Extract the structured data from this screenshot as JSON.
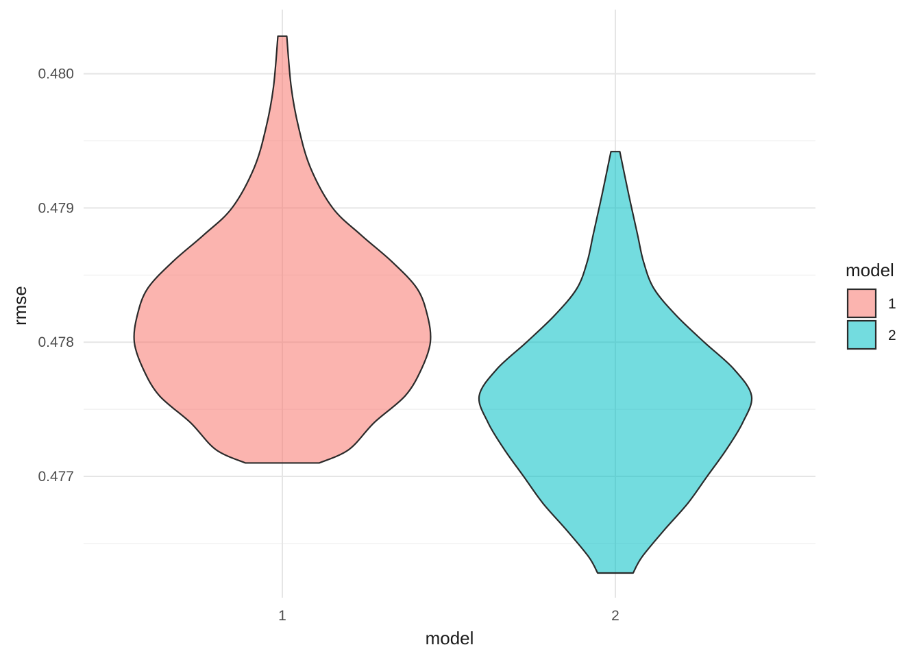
{
  "chart_data": {
    "type": "violin",
    "xlabel": "model",
    "ylabel": "rmse",
    "categories": [
      "1",
      "2"
    ],
    "ylim": [
      0.4763,
      0.4805
    ],
    "y_ticks": [
      0.477,
      0.478,
      0.479,
      0.48
    ],
    "y_tick_labels": [
      "0.477",
      "0.478",
      "0.479",
      "0.480"
    ],
    "grid": true,
    "legend": {
      "title": "model",
      "position": "right",
      "entries": [
        {
          "label": "1",
          "color": "#F8766D"
        },
        {
          "label": "2",
          "color": "#00BFC4"
        }
      ]
    },
    "series": [
      {
        "category": "1",
        "color": "#F8766D",
        "min": 0.4771,
        "max": 0.48028,
        "density_profile": [
          [
            0.48028,
            0.03
          ],
          [
            0.4799,
            0.06
          ],
          [
            0.4796,
            0.11
          ],
          [
            0.4793,
            0.19
          ],
          [
            0.479,
            0.34
          ],
          [
            0.4788,
            0.53
          ],
          [
            0.4786,
            0.74
          ],
          [
            0.4784,
            0.91
          ],
          [
            0.4782,
            0.98
          ],
          [
            0.478,
            1.0
          ],
          [
            0.4778,
            0.94
          ],
          [
            0.4776,
            0.83
          ],
          [
            0.4774,
            0.62
          ],
          [
            0.4772,
            0.45
          ],
          [
            0.4771,
            0.25
          ]
        ]
      },
      {
        "category": "2",
        "color": "#00BFC4",
        "min": 0.47628,
        "max": 0.47942,
        "density_profile": [
          [
            0.47942,
            0.03
          ],
          [
            0.4791,
            0.09
          ],
          [
            0.4788,
            0.15
          ],
          [
            0.4786,
            0.19
          ],
          [
            0.4784,
            0.26
          ],
          [
            0.4782,
            0.41
          ],
          [
            0.478,
            0.6
          ],
          [
            0.4778,
            0.8
          ],
          [
            0.4776,
            0.92
          ],
          [
            0.4774,
            0.86
          ],
          [
            0.4772,
            0.75
          ],
          [
            0.477,
            0.62
          ],
          [
            0.4768,
            0.49
          ],
          [
            0.4766,
            0.33
          ],
          [
            0.4764,
            0.18
          ],
          [
            0.47628,
            0.12
          ]
        ]
      }
    ]
  }
}
